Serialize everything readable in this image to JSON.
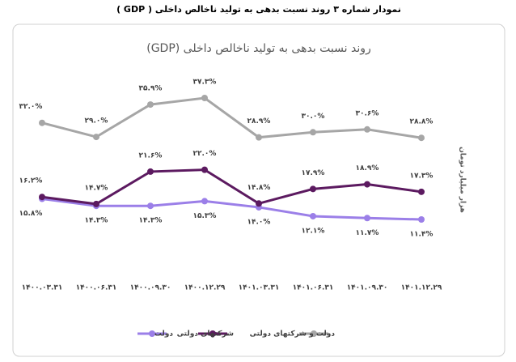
{
  "chart_data": {
    "type": "line",
    "caption": "نمودار شماره ۳ روند نسبت بدهی به تولید ناخالص داخلی ( GDP )",
    "title": "روند نسبت بدهی به تولید ناخالص داخلی (GDP)",
    "y_label": "هزار میلیارد تومان",
    "categories": [
      "۱۴۰۰.۰۳.۳۱",
      "۱۴۰۰.۰۶.۳۱",
      "۱۴۰۰.۰۹.۳۰",
      "۱۴۰۰.۱۲.۲۹",
      "۱۴۰۱.۰۳.۳۱",
      "۱۴۰۱.۰۶.۳۱",
      "۱۴۰۱.۰۹.۳۰",
      "۱۴۰۱.۱۲.۲۹"
    ],
    "series": [
      {
        "name": "دولت",
        "color": "#9b7fe8",
        "values": [
          15.8,
          14.3,
          14.3,
          15.3,
          14.0,
          12.1,
          11.7,
          11.4
        ],
        "value_labels": [
          "۱۵.۸%",
          "۱۴.۳%",
          "۱۴.۳%",
          "۱۵.۳%",
          "۱۴.۰%",
          "۱۲.۱%",
          "۱۱.۷%",
          "۱۱.۴%"
        ]
      },
      {
        "name": "شرکتهای دولتی",
        "color": "#5c1a60",
        "values": [
          16.2,
          14.7,
          21.6,
          22.0,
          14.8,
          17.9,
          18.9,
          17.3
        ],
        "value_labels": [
          "۱۶.۲%",
          "۱۴.۷%",
          "۲۱.۶%",
          "۲۲.۰%",
          "۱۴.۸%",
          "۱۷.۹%",
          "۱۸.۹%",
          "۱۷.۳%"
        ]
      },
      {
        "name": "دولت و شرکتهای دولتی",
        "color": "#a6a6a6",
        "values": [
          32.0,
          29.0,
          35.9,
          37.3,
          28.9,
          30.0,
          30.6,
          28.8
        ],
        "value_labels": [
          "۳۲.۰%",
          "۲۹.۰%",
          "۳۵.۹%",
          "۳۷.۳%",
          "۲۸.۹%",
          "۳۰.۰%",
          "۳۰.۶%",
          "۲۸.۸%"
        ]
      }
    ]
  }
}
